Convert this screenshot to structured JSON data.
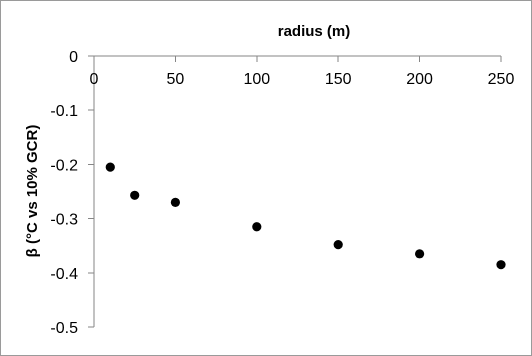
{
  "chart_data": {
    "type": "scatter",
    "title": "",
    "xlabel": "radius (m)",
    "ylabel": "β (°C vs 10% GCR)",
    "x": [
      10,
      25,
      50,
      100,
      150,
      200,
      250
    ],
    "y": [
      -0.205,
      -0.257,
      -0.27,
      -0.315,
      -0.348,
      -0.365,
      -0.385
    ],
    "xlim": [
      0,
      250
    ],
    "ylim": [
      -0.5,
      0
    ],
    "x_ticks": [
      0,
      50,
      100,
      150,
      200,
      250
    ],
    "y_ticks": [
      0,
      -0.1,
      -0.2,
      -0.3,
      -0.4,
      -0.5
    ],
    "x_tick_labels": [
      "0",
      "50",
      "100",
      "150",
      "200",
      "250"
    ],
    "y_tick_labels": [
      "0",
      "-0.1",
      "-0.2",
      "-0.3",
      "-0.4",
      "-0.5"
    ],
    "x_axis_position": "top",
    "grid": false,
    "legend": "none",
    "marker_color": "#000000",
    "axis_color": "#868686"
  }
}
